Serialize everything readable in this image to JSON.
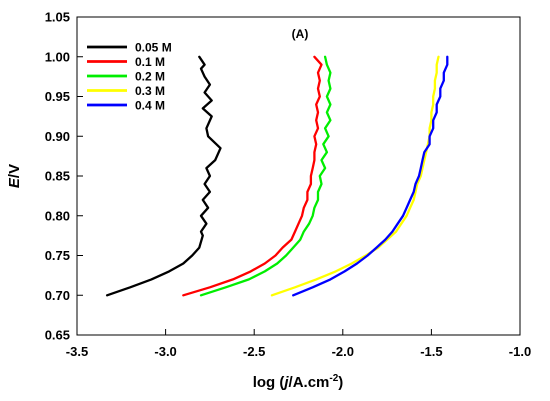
{
  "chart_data": {
    "type": "line",
    "panel_label": "(A)",
    "xlabel_parts": [
      "log (",
      "j",
      "/A.cm",
      "-2",
      ")"
    ],
    "ylabel_parts": [
      "E",
      "/V"
    ],
    "xlim": [
      -3.5,
      -1.0
    ],
    "ylim": [
      0.65,
      1.05
    ],
    "xticks": [
      -3.5,
      -3.0,
      -2.5,
      -2.0,
      -1.5,
      -1.0
    ],
    "xtick_labels": [
      "-3.5",
      "-3.0",
      "-2.5",
      "-2.0",
      "-1.5",
      "-1.0"
    ],
    "yticks": [
      0.65,
      0.7,
      0.75,
      0.8,
      0.85,
      0.9,
      0.95,
      1.0,
      1.05
    ],
    "ytick_labels": [
      "0.65",
      "0.70",
      "0.75",
      "0.80",
      "0.85",
      "0.90",
      "0.95",
      "1.00",
      "1.05"
    ],
    "grid": false,
    "legend_position": "top-left",
    "series": [
      {
        "name": "0.05 M",
        "color": "#000000",
        "points": [
          [
            -3.33,
            0.7
          ],
          [
            -3.2,
            0.71
          ],
          [
            -3.08,
            0.72
          ],
          [
            -2.98,
            0.73
          ],
          [
            -2.9,
            0.74
          ],
          [
            -2.85,
            0.75
          ],
          [
            -2.81,
            0.76
          ],
          [
            -2.79,
            0.775
          ],
          [
            -2.8,
            0.78
          ],
          [
            -2.77,
            0.79
          ],
          [
            -2.8,
            0.8
          ],
          [
            -2.76,
            0.81
          ],
          [
            -2.79,
            0.82
          ],
          [
            -2.75,
            0.83
          ],
          [
            -2.78,
            0.84
          ],
          [
            -2.75,
            0.85
          ],
          [
            -2.77,
            0.86
          ],
          [
            -2.72,
            0.87
          ],
          [
            -2.69,
            0.885
          ],
          [
            -2.76,
            0.9
          ],
          [
            -2.77,
            0.91
          ],
          [
            -2.74,
            0.925
          ],
          [
            -2.79,
            0.935
          ],
          [
            -2.74,
            0.945
          ],
          [
            -2.78,
            0.955
          ],
          [
            -2.75,
            0.965
          ],
          [
            -2.78,
            0.975
          ],
          [
            -2.8,
            0.985
          ],
          [
            -2.78,
            0.99
          ],
          [
            -2.81,
            1.0
          ]
        ]
      },
      {
        "name": "0.1 M",
        "color": "#ff0000",
        "points": [
          [
            -2.9,
            0.7
          ],
          [
            -2.75,
            0.71
          ],
          [
            -2.62,
            0.72
          ],
          [
            -2.52,
            0.73
          ],
          [
            -2.44,
            0.74
          ],
          [
            -2.38,
            0.75
          ],
          [
            -2.34,
            0.76
          ],
          [
            -2.29,
            0.77
          ],
          [
            -2.27,
            0.78
          ],
          [
            -2.25,
            0.79
          ],
          [
            -2.23,
            0.8
          ],
          [
            -2.22,
            0.81
          ],
          [
            -2.2,
            0.82
          ],
          [
            -2.2,
            0.83
          ],
          [
            -2.18,
            0.84
          ],
          [
            -2.18,
            0.85
          ],
          [
            -2.17,
            0.86
          ],
          [
            -2.16,
            0.87
          ],
          [
            -2.16,
            0.88
          ],
          [
            -2.15,
            0.89
          ],
          [
            -2.16,
            0.9
          ],
          [
            -2.14,
            0.91
          ],
          [
            -2.15,
            0.92
          ],
          [
            -2.14,
            0.93
          ],
          [
            -2.15,
            0.94
          ],
          [
            -2.13,
            0.95
          ],
          [
            -2.14,
            0.96
          ],
          [
            -2.13,
            0.97
          ],
          [
            -2.14,
            0.98
          ],
          [
            -2.12,
            0.99
          ],
          [
            -2.16,
            1.0
          ]
        ]
      },
      {
        "name": "0.2 M",
        "color": "#00ee00",
        "points": [
          [
            -2.8,
            0.7
          ],
          [
            -2.66,
            0.71
          ],
          [
            -2.53,
            0.72
          ],
          [
            -2.44,
            0.73
          ],
          [
            -2.37,
            0.74
          ],
          [
            -2.32,
            0.75
          ],
          [
            -2.28,
            0.76
          ],
          [
            -2.24,
            0.77
          ],
          [
            -2.22,
            0.78
          ],
          [
            -2.19,
            0.79
          ],
          [
            -2.17,
            0.8
          ],
          [
            -2.16,
            0.81
          ],
          [
            -2.14,
            0.82
          ],
          [
            -2.14,
            0.83
          ],
          [
            -2.12,
            0.84
          ],
          [
            -2.13,
            0.85
          ],
          [
            -2.1,
            0.86
          ],
          [
            -2.12,
            0.87
          ],
          [
            -2.09,
            0.88
          ],
          [
            -2.11,
            0.89
          ],
          [
            -2.08,
            0.9
          ],
          [
            -2.1,
            0.91
          ],
          [
            -2.07,
            0.92
          ],
          [
            -2.09,
            0.93
          ],
          [
            -2.07,
            0.94
          ],
          [
            -2.09,
            0.95
          ],
          [
            -2.07,
            0.96
          ],
          [
            -2.08,
            0.97
          ],
          [
            -2.07,
            0.98
          ],
          [
            -2.09,
            0.99
          ],
          [
            -2.1,
            1.0
          ]
        ]
      },
      {
        "name": "0.3 M",
        "color": "#ffff00",
        "points": [
          [
            -2.4,
            0.7
          ],
          [
            -2.27,
            0.71
          ],
          [
            -2.15,
            0.72
          ],
          [
            -2.04,
            0.73
          ],
          [
            -1.95,
            0.74
          ],
          [
            -1.87,
            0.75
          ],
          [
            -1.8,
            0.76
          ],
          [
            -1.75,
            0.77
          ],
          [
            -1.7,
            0.78
          ],
          [
            -1.67,
            0.79
          ],
          [
            -1.64,
            0.8
          ],
          [
            -1.62,
            0.81
          ],
          [
            -1.6,
            0.82
          ],
          [
            -1.59,
            0.83
          ],
          [
            -1.58,
            0.84
          ],
          [
            -1.56,
            0.85
          ],
          [
            -1.55,
            0.86
          ],
          [
            -1.54,
            0.87
          ],
          [
            -1.53,
            0.88
          ],
          [
            -1.52,
            0.89
          ],
          [
            -1.51,
            0.9
          ],
          [
            -1.51,
            0.91
          ],
          [
            -1.5,
            0.92
          ],
          [
            -1.5,
            0.93
          ],
          [
            -1.49,
            0.94
          ],
          [
            -1.49,
            0.95
          ],
          [
            -1.48,
            0.96
          ],
          [
            -1.48,
            0.97
          ],
          [
            -1.47,
            0.98
          ],
          [
            -1.47,
            0.99
          ],
          [
            -1.46,
            1.0
          ]
        ]
      },
      {
        "name": "0.4 M",
        "color": "#0000ff",
        "points": [
          [
            -2.28,
            0.7
          ],
          [
            -2.17,
            0.71
          ],
          [
            -2.07,
            0.72
          ],
          [
            -1.99,
            0.73
          ],
          [
            -1.92,
            0.74
          ],
          [
            -1.86,
            0.75
          ],
          [
            -1.81,
            0.76
          ],
          [
            -1.76,
            0.77
          ],
          [
            -1.72,
            0.78
          ],
          [
            -1.69,
            0.79
          ],
          [
            -1.66,
            0.8
          ],
          [
            -1.64,
            0.81
          ],
          [
            -1.62,
            0.82
          ],
          [
            -1.6,
            0.83
          ],
          [
            -1.59,
            0.84
          ],
          [
            -1.57,
            0.85
          ],
          [
            -1.56,
            0.86
          ],
          [
            -1.55,
            0.87
          ],
          [
            -1.54,
            0.88
          ],
          [
            -1.51,
            0.89
          ],
          [
            -1.51,
            0.9
          ],
          [
            -1.49,
            0.91
          ],
          [
            -1.49,
            0.92
          ],
          [
            -1.47,
            0.93
          ],
          [
            -1.47,
            0.94
          ],
          [
            -1.45,
            0.95
          ],
          [
            -1.45,
            0.96
          ],
          [
            -1.43,
            0.97
          ],
          [
            -1.43,
            0.98
          ],
          [
            -1.41,
            0.99
          ],
          [
            -1.41,
            1.0
          ]
        ]
      }
    ]
  }
}
